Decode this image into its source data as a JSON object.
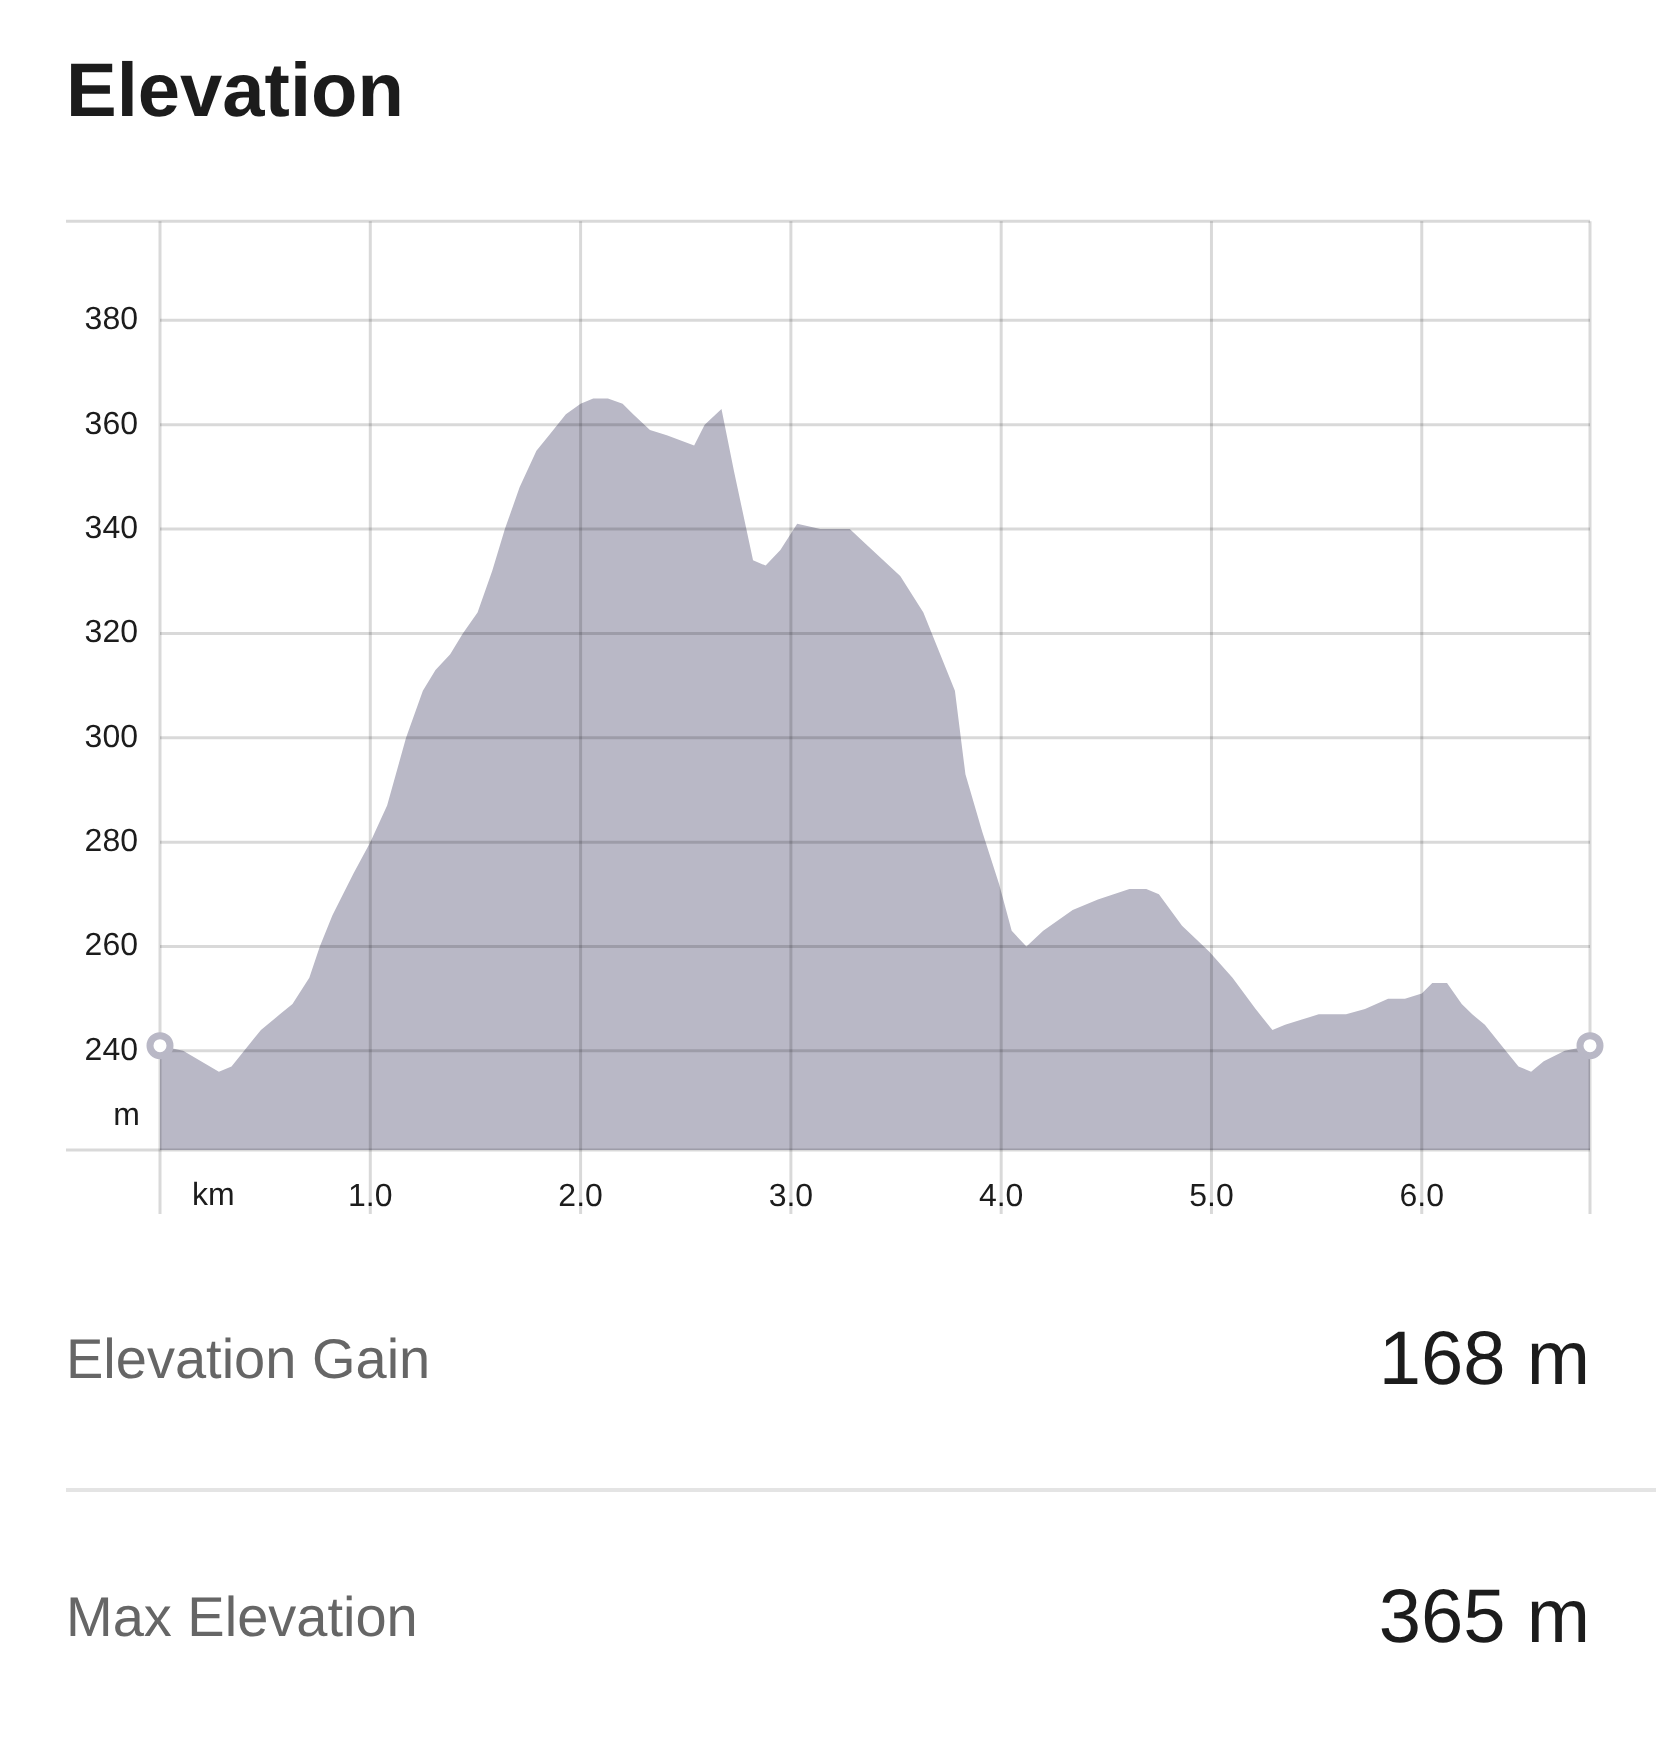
{
  "chart_data": {
    "type": "area",
    "title": "Elevation",
    "xlabel": "km",
    "ylabel": "m",
    "xlim": [
      0,
      6.8
    ],
    "ylim": [
      221,
      399
    ],
    "xticks": [
      {
        "value": 0,
        "label": null
      },
      {
        "value": 1,
        "label": "1.0"
      },
      {
        "value": 2,
        "label": "2.0"
      },
      {
        "value": 3,
        "label": "3.0"
      },
      {
        "value": 4,
        "label": "4.0"
      },
      {
        "value": 5,
        "label": "5.0"
      },
      {
        "value": 6,
        "label": "6.0"
      }
    ],
    "yticks": [
      240,
      260,
      280,
      300,
      320,
      340,
      360,
      380
    ],
    "grid": true,
    "annotations": [
      "Elevation Gain",
      "168 m",
      "Max Elevation",
      "365 m"
    ],
    "series": [
      {
        "type": "area",
        "color": "#b9b8c6",
        "x": [
          0,
          0.11,
          0.28,
          0.34,
          0.48,
          0.57,
          0.63,
          0.71,
          0.76,
          0.82,
          0.92,
          1.0,
          1.08,
          1.17,
          1.25,
          1.31,
          1.38,
          1.44,
          1.51,
          1.58,
          1.64,
          1.71,
          1.79,
          1.85,
          1.93,
          2.0,
          2.06,
          2.13,
          2.2,
          2.25,
          2.33,
          2.41,
          2.54,
          2.59,
          2.67,
          2.73,
          2.82,
          2.88,
          2.95,
          3.03,
          3.14,
          3.28,
          3.36,
          3.52,
          3.63,
          3.71,
          3.78,
          3.83,
          3.91,
          3.99,
          4.05,
          4.12,
          4.2,
          4.34,
          4.46,
          4.61,
          4.69,
          4.75,
          4.86,
          4.99,
          5.1,
          5.21,
          5.29,
          5.35,
          5.43,
          5.51,
          5.64,
          5.73,
          5.84,
          5.92,
          6.0,
          6.05,
          6.12,
          6.19,
          6.24,
          6.3,
          6.38,
          6.46,
          6.52,
          6.58,
          6.68,
          6.8
        ],
        "values": [
          241,
          240,
          236,
          237,
          244,
          247,
          249,
          254,
          260,
          266,
          274,
          280,
          287,
          300,
          309,
          313,
          316,
          320,
          324,
          332,
          340,
          348,
          355,
          358,
          362,
          364,
          365,
          365,
          364,
          362,
          359,
          358,
          356,
          360,
          363,
          351,
          334,
          333,
          336,
          341,
          340,
          340,
          337,
          331,
          324,
          316,
          309,
          293,
          282,
          272,
          263,
          260,
          263,
          267,
          269,
          271,
          271,
          270,
          264,
          259,
          254,
          248,
          244,
          245,
          246,
          247,
          247,
          248,
          250,
          250,
          251,
          253,
          253,
          249,
          247,
          245,
          241,
          237,
          236,
          238,
          240,
          241
        ]
      },
      {
        "type": "scatter",
        "color": "#b9b8c6",
        "marker": "circle",
        "x": [
          0,
          6.8
        ],
        "values": [
          241,
          241
        ]
      }
    ]
  }
}
